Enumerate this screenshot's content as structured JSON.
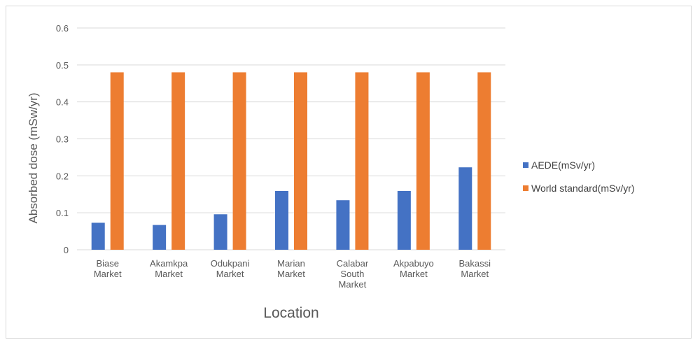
{
  "chart_data": {
    "type": "bar",
    "title": "",
    "xlabel": "Location",
    "ylabel": "Absorbed dose (mSw/yr)",
    "ylim": [
      0,
      0.6
    ],
    "yticks": [
      0,
      0.1,
      0.2,
      0.3,
      0.4,
      0.5,
      0.6
    ],
    "grid": true,
    "legend_position": "right",
    "categories": [
      [
        "Biase",
        "Market"
      ],
      [
        "Akamkpa",
        "Market"
      ],
      [
        "Odukpani",
        "Market"
      ],
      [
        "Marian",
        "Market"
      ],
      [
        "Calabar",
        "South",
        "Market"
      ],
      [
        "Akpabuyo",
        "Market"
      ],
      [
        "Bakassi",
        "Market"
      ]
    ],
    "series": [
      {
        "name": "AEDE(mSv/yr)",
        "color": "#4472c4",
        "values": [
          0.073,
          0.067,
          0.096,
          0.159,
          0.134,
          0.159,
          0.223
        ]
      },
      {
        "name": "World standard(mSv/yr)",
        "color": "#ed7d31",
        "values": [
          0.48,
          0.48,
          0.48,
          0.48,
          0.48,
          0.48,
          0.48
        ]
      }
    ]
  }
}
